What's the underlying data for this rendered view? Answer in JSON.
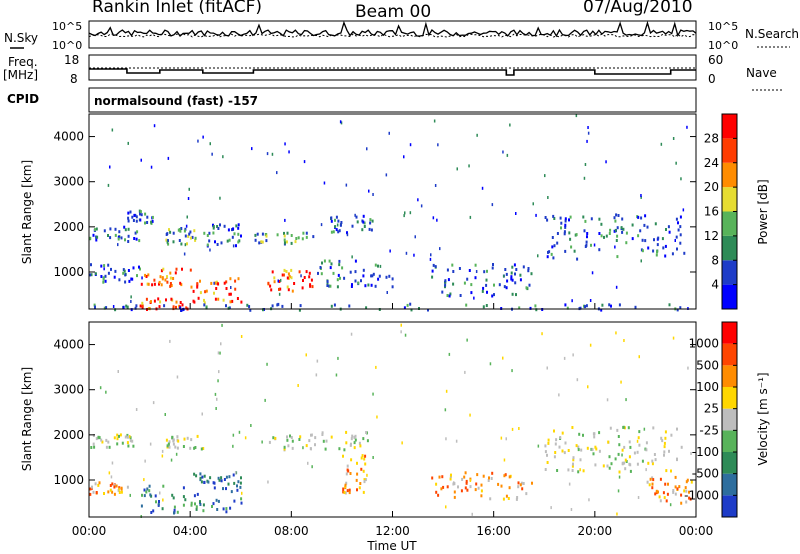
{
  "header": {
    "station": "Rankin Inlet (fitACF)",
    "beam": "Beam 00",
    "date": "07/Aug/2010"
  },
  "strips": {
    "nsky_label": "N.Sky",
    "nsky_ticks": [
      "10^5",
      "10^0"
    ],
    "nsearch_label": "N.Search",
    "nsearch_ticks": [
      "10^5",
      "10^0"
    ],
    "freq_label": "Freq.",
    "freq_unit": "[MHz]",
    "freq_ticks": [
      "18",
      "8"
    ],
    "nave_label": "Nave",
    "nave_ticks": [
      "60",
      "0"
    ],
    "cpid_label": "CPID",
    "cpid_value": "normalsound (fast) -157"
  },
  "chart_data": [
    {
      "type": "heatmap",
      "name": "power",
      "ylabel": "Slant Range [km]",
      "xlabel": "Time UT",
      "ylim": [
        180,
        4500
      ],
      "yticks": [
        "1000",
        "2000",
        "3000",
        "4000"
      ],
      "xticks": [
        "00:00",
        "04:00",
        "08:00",
        "12:00",
        "16:00",
        "20:00",
        "00:00"
      ],
      "colorbar": {
        "label": "Power [dB]",
        "ticks": [
          "28",
          "24",
          "20",
          "16",
          "12",
          "8",
          "4"
        ],
        "colors": [
          "#0000ff",
          "#1e3cc8",
          "#2e8b57",
          "#58b35a",
          "#e6dc32",
          "#ff8c00",
          "#ff3c00",
          "#ff0000"
        ]
      },
      "echo_regions": [
        {
          "t0": 0.0,
          "t1": 2.0,
          "r0": 1700,
          "r1": 2050,
          "level": "low"
        },
        {
          "t0": 1.5,
          "t1": 2.5,
          "r0": 2100,
          "r1": 2400,
          "level": "low"
        },
        {
          "t0": 3.0,
          "t1": 4.2,
          "r0": 1650,
          "r1": 2000,
          "level": "mid"
        },
        {
          "t0": 4.5,
          "t1": 6.0,
          "r0": 1600,
          "r1": 2100,
          "level": "low"
        },
        {
          "t0": 6.5,
          "t1": 9.0,
          "r0": 1650,
          "r1": 1900,
          "level": "mid"
        },
        {
          "t0": 9.5,
          "t1": 11.2,
          "r0": 1900,
          "r1": 2300,
          "level": "low"
        },
        {
          "t0": 0.0,
          "t1": 2.0,
          "r0": 800,
          "r1": 1200,
          "level": "low"
        },
        {
          "t0": 2.0,
          "t1": 4.0,
          "r0": 700,
          "r1": 1100,
          "level": "high"
        },
        {
          "t0": 4.0,
          "t1": 6.0,
          "r0": 350,
          "r1": 900,
          "level": "high"
        },
        {
          "t0": 7.0,
          "t1": 8.8,
          "r0": 600,
          "r1": 1100,
          "level": "high"
        },
        {
          "t0": 2.0,
          "t1": 4.0,
          "r0": 200,
          "r1": 450,
          "level": "high"
        },
        {
          "t0": 9.0,
          "t1": 12.0,
          "r0": 700,
          "r1": 1300,
          "level": "low"
        },
        {
          "t0": 13.5,
          "t1": 17.5,
          "r0": 500,
          "r1": 1200,
          "level": "low"
        },
        {
          "t0": 18.0,
          "t1": 23.5,
          "r0": 1300,
          "r1": 2300,
          "level": "low"
        },
        {
          "t0": 0.0,
          "t1": 24.0,
          "r0": 180,
          "r1": 320,
          "level": "low"
        }
      ]
    },
    {
      "type": "heatmap",
      "name": "velocity",
      "ylabel": "Slant Range [km]",
      "xlabel": "Time UT",
      "ylim": [
        180,
        4500
      ],
      "yticks": [
        "1000",
        "2000",
        "3000",
        "4000"
      ],
      "xticks": [
        "00:00",
        "04:00",
        "08:00",
        "12:00",
        "16:00",
        "20:00",
        "00:00"
      ],
      "colorbar": {
        "label": "Velocity [m s⁻¹]",
        "ticks": [
          "1000",
          "500",
          "100",
          "25",
          "-25",
          "-100",
          "-500",
          "-1000"
        ],
        "colors": [
          "#1e3cc8",
          "#2e6e9e",
          "#2e8b57",
          "#58b35a",
          "#bdbdbd",
          "#ffd700",
          "#ff8c00",
          "#ff4500",
          "#ff0000"
        ]
      },
      "echo_regions": [
        {
          "t0": 0.0,
          "t1": 2.0,
          "r0": 1750,
          "r1": 2050,
          "level": "gray"
        },
        {
          "t0": 3.0,
          "t1": 4.5,
          "r0": 1700,
          "r1": 2000,
          "level": "gray"
        },
        {
          "t0": 7.0,
          "t1": 11.0,
          "r0": 1700,
          "r1": 2100,
          "level": "gray"
        },
        {
          "t0": 0.0,
          "t1": 1.5,
          "r0": 700,
          "r1": 1000,
          "level": "orange"
        },
        {
          "t0": 2.0,
          "t1": 6.0,
          "r0": 300,
          "r1": 900,
          "level": "green"
        },
        {
          "t0": 4.0,
          "t1": 6.0,
          "r0": 900,
          "r1": 1200,
          "level": "blue"
        },
        {
          "t0": 10.0,
          "t1": 11.0,
          "r0": 700,
          "r1": 1600,
          "level": "orange"
        },
        {
          "t0": 13.5,
          "t1": 17.5,
          "r0": 600,
          "r1": 1200,
          "level": "orange"
        },
        {
          "t0": 18.0,
          "t1": 23.5,
          "r0": 1200,
          "r1": 2200,
          "level": "gray"
        },
        {
          "t0": 22.0,
          "t1": 24.0,
          "r0": 500,
          "r1": 1100,
          "level": "orange"
        }
      ]
    }
  ]
}
